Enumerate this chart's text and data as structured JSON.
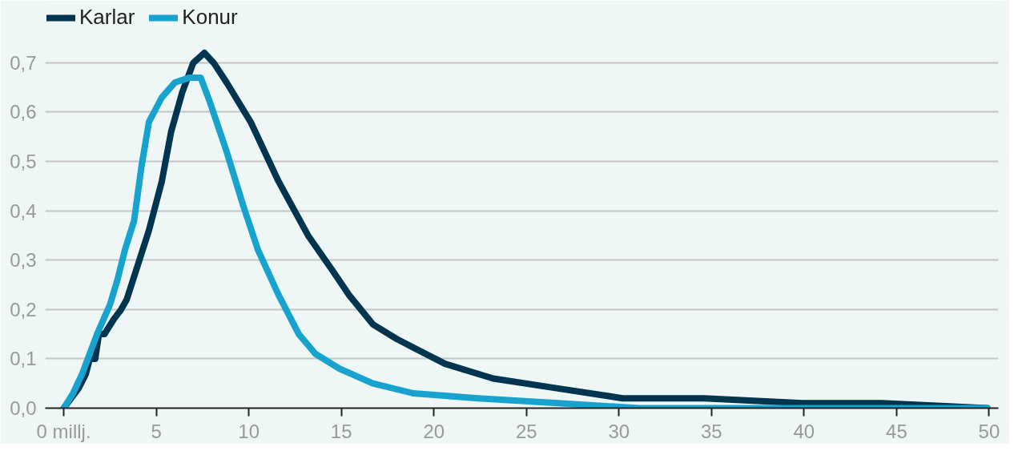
{
  "chart_data": {
    "type": "line",
    "xlim": [
      -1,
      50.5
    ],
    "ylim": [
      0,
      0.82
    ],
    "xticks": [
      {
        "value": 0,
        "label": "0 millj."
      },
      5,
      10,
      15,
      20,
      25,
      30,
      35,
      40,
      45,
      50
    ],
    "yticks": [
      {
        "value": 0,
        "label": "0,0"
      },
      {
        "value": 0.1,
        "label": "0,1"
      },
      {
        "value": 0.2,
        "label": "0,2"
      },
      {
        "value": 0.3,
        "label": "0,3"
      },
      {
        "value": 0.4,
        "label": "0,4"
      },
      {
        "value": 0.5,
        "label": "0,5"
      },
      {
        "value": 0.6,
        "label": "0,6"
      },
      {
        "value": 0.7,
        "label": "0,7"
      }
    ],
    "grid": "y",
    "legend": "top left",
    "marker": "none",
    "line_style": "solid",
    "series": [
      {
        "name": "Karlar",
        "color": "#00344f",
        "x": [
          0,
          0.8,
          1.2,
          1.4,
          1.7,
          1.9,
          2.2,
          2.7,
          3.1,
          3.4,
          4.0,
          4.6,
          5.3,
          5.8,
          6.4,
          7.0,
          7.6,
          8.1,
          8.8,
          10.1,
          11.6,
          13.2,
          14.5,
          15.4,
          16.7,
          18.0,
          20.6,
          23.2,
          26.7,
          30.2,
          34.6,
          39.9,
          44.2,
          49.9
        ],
        "values": [
          0,
          0.04,
          0.07,
          0.1,
          0.1,
          0.15,
          0.15,
          0.18,
          0.2,
          0.22,
          0.29,
          0.36,
          0.46,
          0.56,
          0.64,
          0.7,
          0.72,
          0.7,
          0.66,
          0.58,
          0.46,
          0.35,
          0.28,
          0.23,
          0.17,
          0.14,
          0.09,
          0.06,
          0.04,
          0.02,
          0.02,
          0.01,
          0.01,
          0.0
        ]
      },
      {
        "name": "Konur",
        "color": "#18a3cf",
        "x": [
          0,
          0.5,
          1.0,
          1.4,
          1.8,
          2.5,
          2.9,
          3.3,
          3.8,
          4.2,
          4.6,
          5.3,
          6.0,
          6.8,
          7.4,
          7.9,
          8.8,
          9.7,
          10.5,
          11.6,
          12.7,
          13.6,
          14.9,
          16.7,
          18.9,
          22.4,
          26.7,
          31.1,
          35.5,
          49.9
        ],
        "values": [
          0,
          0.03,
          0.07,
          0.11,
          0.15,
          0.21,
          0.26,
          0.32,
          0.38,
          0.49,
          0.58,
          0.63,
          0.66,
          0.67,
          0.67,
          0.62,
          0.52,
          0.41,
          0.32,
          0.23,
          0.15,
          0.11,
          0.08,
          0.05,
          0.03,
          0.02,
          0.01,
          0.0,
          0.0,
          0.0
        ]
      }
    ]
  }
}
